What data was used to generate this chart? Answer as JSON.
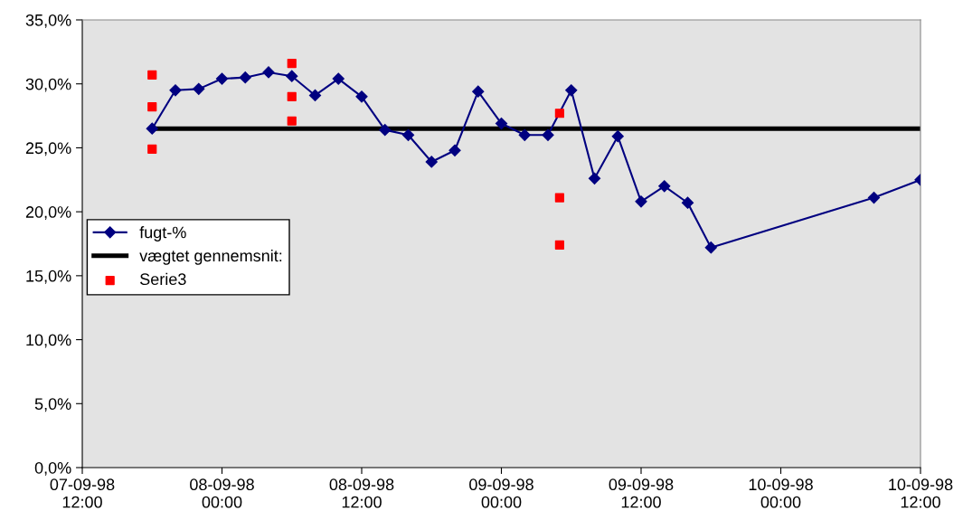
{
  "chart_data": {
    "type": "line",
    "ylim": [
      0,
      35
    ],
    "yticks": [
      {
        "value": 0,
        "label": "0,0%"
      },
      {
        "value": 5,
        "label": "5,0%"
      },
      {
        "value": 10,
        "label": "10,0%"
      },
      {
        "value": 15,
        "label": "15,0%"
      },
      {
        "value": 20,
        "label": "20,0%"
      },
      {
        "value": 25,
        "label": "25,0%"
      },
      {
        "value": 30,
        "label": "30,0%"
      },
      {
        "value": 35,
        "label": "35,0%"
      }
    ],
    "xlim": [
      "1998-09-07T12:00",
      "1998-09-10T12:00"
    ],
    "xticks": [
      {
        "value": "1998-09-07T12:00",
        "label": "07-09-98\n12:00"
      },
      {
        "value": "1998-09-08T00:00",
        "label": "08-09-98\n00:00"
      },
      {
        "value": "1998-09-08T12:00",
        "label": "08-09-98\n12:00"
      },
      {
        "value": "1998-09-09T00:00",
        "label": "09-09-98\n00:00"
      },
      {
        "value": "1998-09-09T12:00",
        "label": "09-09-98\n12:00"
      },
      {
        "value": "1998-09-10T00:00",
        "label": "10-09-98\n00:00"
      },
      {
        "value": "1998-09-10T12:00",
        "label": "10-09-98\n12:00"
      }
    ],
    "grid": false,
    "legend": "left",
    "series": [
      {
        "name": "fugt-%",
        "color": "#000080",
        "marker": "diamond",
        "line_style": "solid",
        "x": [
          "1998-09-07T18:00",
          "1998-09-07T20:00",
          "1998-09-07T22:00",
          "1998-09-08T00:00",
          "1998-09-08T02:00",
          "1998-09-08T04:00",
          "1998-09-08T06:00",
          "1998-09-08T08:00",
          "1998-09-08T10:00",
          "1998-09-08T12:00",
          "1998-09-08T14:00",
          "1998-09-08T16:00",
          "1998-09-08T18:00",
          "1998-09-08T20:00",
          "1998-09-08T22:00",
          "1998-09-09T00:00",
          "1998-09-09T02:00",
          "1998-09-09T04:00",
          "1998-09-09T06:00",
          "1998-09-09T08:00",
          "1998-09-09T10:00",
          "1998-09-09T12:00",
          "1998-09-09T14:00",
          "1998-09-09T16:00",
          "1998-09-09T18:00",
          "1998-09-10T08:00",
          "1998-09-10T12:00"
        ],
        "values": [
          26.5,
          29.5,
          29.6,
          30.4,
          30.5,
          30.9,
          30.6,
          29.1,
          30.4,
          29.0,
          26.4,
          26.0,
          23.9,
          24.8,
          29.4,
          26.9,
          26.0,
          26.0,
          29.5,
          22.6,
          25.9,
          20.8,
          22.0,
          20.7,
          17.2,
          21.1,
          22.5
        ]
      },
      {
        "name": "vægtet gennemsnit:",
        "color": "#000000",
        "marker": "none",
        "line_style": "solid",
        "x": [
          "1998-09-07T18:00",
          "1998-09-10T12:00"
        ],
        "values": [
          26.5,
          26.5
        ]
      },
      {
        "name": "Serie3",
        "type": "scatter",
        "color": "#ff0000",
        "marker": "square",
        "x": [
          "1998-09-07T18:00",
          "1998-09-07T18:00",
          "1998-09-07T18:00",
          "1998-09-08T06:00",
          "1998-09-08T06:00",
          "1998-09-08T06:00",
          "1998-09-09T05:00",
          "1998-09-09T05:00",
          "1998-09-09T05:00"
        ],
        "values": [
          30.7,
          28.2,
          24.9,
          31.6,
          29.0,
          27.1,
          27.7,
          21.1,
          17.4
        ]
      }
    ]
  }
}
